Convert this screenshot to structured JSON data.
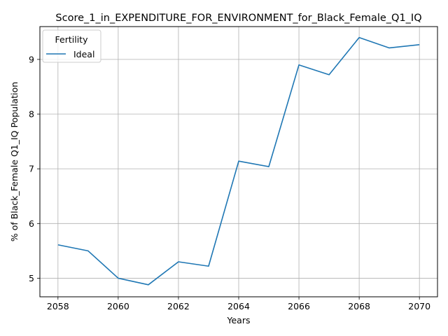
{
  "chart_data": {
    "type": "line",
    "title": "Score_1_in_EXPENDITURE_FOR_ENVIRONMENT_for_Black_Female_Q1_IQ",
    "xlabel": "Years",
    "ylabel": "% of Black_Female Q1_IQ Population",
    "xlim": [
      2057.4,
      2070.6
    ],
    "ylim": [
      4.66,
      9.6
    ],
    "xticks": [
      2058,
      2060,
      2062,
      2064,
      2066,
      2068,
      2070
    ],
    "yticks": [
      5,
      6,
      7,
      8,
      9
    ],
    "grid": true,
    "legend": {
      "title": "Fertility",
      "placement": "top-left"
    },
    "series": [
      {
        "name": "Ideal",
        "color": "#1f77b4",
        "x": [
          2058,
          2059,
          2060,
          2061,
          2062,
          2063,
          2064,
          2065,
          2066,
          2067,
          2068,
          2069,
          2070
        ],
        "y": [
          5.61,
          5.5,
          5.0,
          4.88,
          5.3,
          5.22,
          7.14,
          7.04,
          8.9,
          8.72,
          9.4,
          9.21,
          9.27
        ]
      }
    ]
  }
}
